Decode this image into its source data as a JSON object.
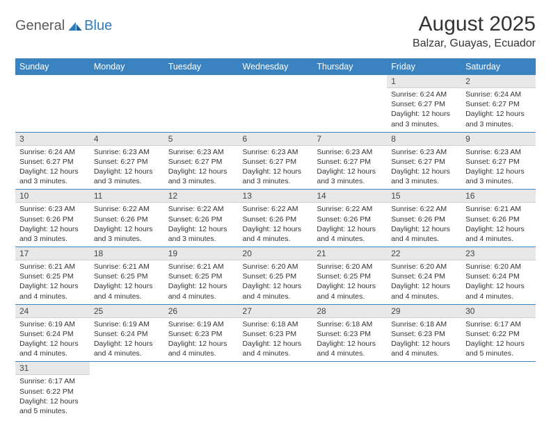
{
  "logo": {
    "part1": "General",
    "part2": "Blue"
  },
  "title": "August 2025",
  "location": "Balzar, Guayas, Ecuador",
  "colors": {
    "header_bg": "#3b83c0",
    "header_text": "#ffffff",
    "daynum_bg": "#e8e8e8",
    "row_divider": "#3b83c0",
    "logo_gray": "#5a5a5a",
    "logo_blue": "#2d7bbf"
  },
  "weekdays": [
    "Sunday",
    "Monday",
    "Tuesday",
    "Wednesday",
    "Thursday",
    "Friday",
    "Saturday"
  ],
  "weeks": [
    [
      null,
      null,
      null,
      null,
      null,
      {
        "n": "1",
        "sr": "6:24 AM",
        "ss": "6:27 PM",
        "dl": "12 hours and 3 minutes."
      },
      {
        "n": "2",
        "sr": "6:24 AM",
        "ss": "6:27 PM",
        "dl": "12 hours and 3 minutes."
      }
    ],
    [
      {
        "n": "3",
        "sr": "6:24 AM",
        "ss": "6:27 PM",
        "dl": "12 hours and 3 minutes."
      },
      {
        "n": "4",
        "sr": "6:23 AM",
        "ss": "6:27 PM",
        "dl": "12 hours and 3 minutes."
      },
      {
        "n": "5",
        "sr": "6:23 AM",
        "ss": "6:27 PM",
        "dl": "12 hours and 3 minutes."
      },
      {
        "n": "6",
        "sr": "6:23 AM",
        "ss": "6:27 PM",
        "dl": "12 hours and 3 minutes."
      },
      {
        "n": "7",
        "sr": "6:23 AM",
        "ss": "6:27 PM",
        "dl": "12 hours and 3 minutes."
      },
      {
        "n": "8",
        "sr": "6:23 AM",
        "ss": "6:27 PM",
        "dl": "12 hours and 3 minutes."
      },
      {
        "n": "9",
        "sr": "6:23 AM",
        "ss": "6:27 PM",
        "dl": "12 hours and 3 minutes."
      }
    ],
    [
      {
        "n": "10",
        "sr": "6:23 AM",
        "ss": "6:26 PM",
        "dl": "12 hours and 3 minutes."
      },
      {
        "n": "11",
        "sr": "6:22 AM",
        "ss": "6:26 PM",
        "dl": "12 hours and 3 minutes."
      },
      {
        "n": "12",
        "sr": "6:22 AM",
        "ss": "6:26 PM",
        "dl": "12 hours and 3 minutes."
      },
      {
        "n": "13",
        "sr": "6:22 AM",
        "ss": "6:26 PM",
        "dl": "12 hours and 4 minutes."
      },
      {
        "n": "14",
        "sr": "6:22 AM",
        "ss": "6:26 PM",
        "dl": "12 hours and 4 minutes."
      },
      {
        "n": "15",
        "sr": "6:22 AM",
        "ss": "6:26 PM",
        "dl": "12 hours and 4 minutes."
      },
      {
        "n": "16",
        "sr": "6:21 AM",
        "ss": "6:26 PM",
        "dl": "12 hours and 4 minutes."
      }
    ],
    [
      {
        "n": "17",
        "sr": "6:21 AM",
        "ss": "6:25 PM",
        "dl": "12 hours and 4 minutes."
      },
      {
        "n": "18",
        "sr": "6:21 AM",
        "ss": "6:25 PM",
        "dl": "12 hours and 4 minutes."
      },
      {
        "n": "19",
        "sr": "6:21 AM",
        "ss": "6:25 PM",
        "dl": "12 hours and 4 minutes."
      },
      {
        "n": "20",
        "sr": "6:20 AM",
        "ss": "6:25 PM",
        "dl": "12 hours and 4 minutes."
      },
      {
        "n": "21",
        "sr": "6:20 AM",
        "ss": "6:25 PM",
        "dl": "12 hours and 4 minutes."
      },
      {
        "n": "22",
        "sr": "6:20 AM",
        "ss": "6:24 PM",
        "dl": "12 hours and 4 minutes."
      },
      {
        "n": "23",
        "sr": "6:20 AM",
        "ss": "6:24 PM",
        "dl": "12 hours and 4 minutes."
      }
    ],
    [
      {
        "n": "24",
        "sr": "6:19 AM",
        "ss": "6:24 PM",
        "dl": "12 hours and 4 minutes."
      },
      {
        "n": "25",
        "sr": "6:19 AM",
        "ss": "6:24 PM",
        "dl": "12 hours and 4 minutes."
      },
      {
        "n": "26",
        "sr": "6:19 AM",
        "ss": "6:23 PM",
        "dl": "12 hours and 4 minutes."
      },
      {
        "n": "27",
        "sr": "6:18 AM",
        "ss": "6:23 PM",
        "dl": "12 hours and 4 minutes."
      },
      {
        "n": "28",
        "sr": "6:18 AM",
        "ss": "6:23 PM",
        "dl": "12 hours and 4 minutes."
      },
      {
        "n": "29",
        "sr": "6:18 AM",
        "ss": "6:23 PM",
        "dl": "12 hours and 4 minutes."
      },
      {
        "n": "30",
        "sr": "6:17 AM",
        "ss": "6:22 PM",
        "dl": "12 hours and 5 minutes."
      }
    ],
    [
      {
        "n": "31",
        "sr": "6:17 AM",
        "ss": "6:22 PM",
        "dl": "12 hours and 5 minutes."
      },
      null,
      null,
      null,
      null,
      null,
      null
    ]
  ],
  "labels": {
    "sunrise": "Sunrise:",
    "sunset": "Sunset:",
    "daylight": "Daylight:"
  }
}
